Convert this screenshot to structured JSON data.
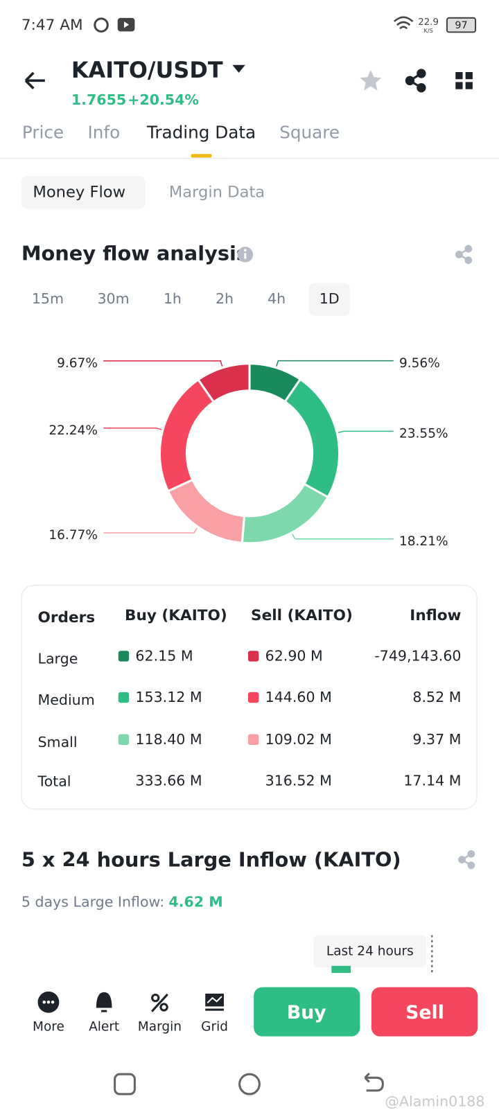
{
  "status_bar": {
    "time": "7:47 AM",
    "speed": "22.9",
    "speed_unit": "K/S",
    "battery": "97"
  },
  "header": {
    "pair": "KAITO/USDT",
    "price": "1.7655",
    "change": "+20.54%"
  },
  "tabs": [
    "Price",
    "Info",
    "Trading Data",
    "Square"
  ],
  "subtabs": [
    "Money Flow",
    "Margin Data"
  ],
  "money_flow": {
    "title": "Money flow analysis",
    "intervals": [
      "15m",
      "30m",
      "1h",
      "2h",
      "4h",
      "1D"
    ]
  },
  "money_flow_chart": {
    "type": "donut",
    "values": [
      9.56,
      23.55,
      18.21,
      16.77,
      22.24,
      9.67
    ],
    "value_labels": [
      "9.56%",
      "23.55%",
      "18.21%",
      "16.77%",
      "22.24%",
      "9.67%"
    ],
    "colors": [
      "#188a5c",
      "#2ebd85",
      "#7dd8ac",
      "#f8a0a6",
      "#f6465d",
      "#d9304e"
    ]
  },
  "table": {
    "header": [
      "Orders",
      "Buy (KAITO)",
      "Sell (KAITO)",
      "Inflow"
    ],
    "rows": [
      [
        "Large",
        "62.15 M",
        "62.90 M",
        "-749,143.60"
      ],
      [
        "Medium",
        "153.12 M",
        "144.60 M",
        "8.52 M"
      ],
      [
        "Small",
        "118.40 M",
        "109.02 M",
        "9.37 M"
      ],
      [
        "Total",
        "333.66 M",
        "316.52 M",
        "17.14 M"
      ]
    ]
  },
  "large_inflow": {
    "title": "5 x 24 hours Large Inflow (KAITO)",
    "label": "5 days Large Inflow:",
    "value": "4.62 M",
    "tooltip": "Last 24 hours"
  },
  "bottom_bar": {
    "actions": [
      "More",
      "Alert",
      "Margin",
      "Grid"
    ],
    "buy": "Buy",
    "sell": "Sell"
  },
  "watermark": "@Alamin0188"
}
